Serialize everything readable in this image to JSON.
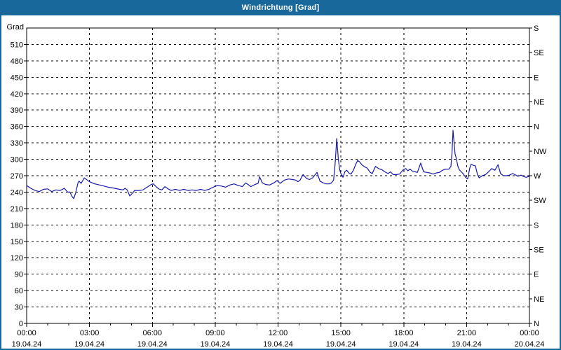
{
  "window": {
    "title": "Windrichtung [Grad]"
  },
  "colors": {
    "titlebar_bg": "#19689C",
    "frame_border": "#19689C",
    "plot_border": "#000000",
    "grid": "#000000",
    "line": "#1818A8",
    "background": "#FFFFFF",
    "title_text": "#FFFFFF",
    "label_text": "#000000"
  },
  "chart_data": {
    "type": "line",
    "title": "Windrichtung [Grad]",
    "ylabel_left": "Grad",
    "ylim": [
      0,
      540
    ],
    "y_left_tick_step": 30,
    "y_left_ticks": [
      0,
      30,
      60,
      90,
      120,
      150,
      180,
      210,
      240,
      270,
      300,
      330,
      360,
      390,
      420,
      450,
      480,
      510
    ],
    "y_right_labels": [
      {
        "deg": 0,
        "label": "N"
      },
      {
        "deg": 45,
        "label": "NE"
      },
      {
        "deg": 90,
        "label": "E"
      },
      {
        "deg": 135,
        "label": "SE"
      },
      {
        "deg": 180,
        "label": "S"
      },
      {
        "deg": 225,
        "label": "SW"
      },
      {
        "deg": 270,
        "label": "W"
      },
      {
        "deg": 315,
        "label": "NW"
      },
      {
        "deg": 360,
        "label": "N"
      },
      {
        "deg": 405,
        "label": "NE"
      },
      {
        "deg": 450,
        "label": "E"
      },
      {
        "deg": 495,
        "label": "SE"
      },
      {
        "deg": 540,
        "label": "S"
      }
    ],
    "xlim_hours": [
      0,
      24
    ],
    "x_major_ticks": [
      {
        "hours": 0,
        "time": "00:00",
        "date": "19.04.24"
      },
      {
        "hours": 3,
        "time": "03:00",
        "date": "19.04.24"
      },
      {
        "hours": 6,
        "time": "06:00",
        "date": "19.04.24"
      },
      {
        "hours": 9,
        "time": "09:00",
        "date": "19.04.24"
      },
      {
        "hours": 12,
        "time": "12:00",
        "date": "19.04.24"
      },
      {
        "hours": 15,
        "time": "15:00",
        "date": "19.04.24"
      },
      {
        "hours": 18,
        "time": "18:00",
        "date": "19.04.24"
      },
      {
        "hours": 21,
        "time": "21:00",
        "date": "19.04.24"
      },
      {
        "hours": 24,
        "time": "00:00",
        "date": "20.04.24"
      }
    ],
    "x_minor_tick_hours": 1,
    "grid": "dashed",
    "series": [
      {
        "color": "#1818A8",
        "points": [
          [
            0,
            252
          ],
          [
            0.2,
            247
          ],
          [
            0.4,
            243
          ],
          [
            0.6,
            241
          ],
          [
            0.8,
            245
          ],
          [
            1.0,
            246
          ],
          [
            1.2,
            241
          ],
          [
            1.4,
            244
          ],
          [
            1.6,
            243
          ],
          [
            1.8,
            247
          ],
          [
            1.95,
            240
          ],
          [
            2.07,
            240
          ],
          [
            2.15,
            233
          ],
          [
            2.25,
            228
          ],
          [
            2.35,
            240
          ],
          [
            2.45,
            257
          ],
          [
            2.5,
            260
          ],
          [
            2.6,
            256
          ],
          [
            2.75,
            266
          ],
          [
            2.9,
            262
          ],
          [
            3.0,
            259
          ],
          [
            3.25,
            255
          ],
          [
            3.6,
            252
          ],
          [
            3.9,
            249
          ],
          [
            4.2,
            247
          ],
          [
            4.45,
            245
          ],
          [
            4.6,
            244
          ],
          [
            4.7,
            247
          ],
          [
            4.8,
            244
          ],
          [
            4.92,
            233
          ],
          [
            5.05,
            238
          ],
          [
            5.15,
            243
          ],
          [
            5.35,
            243
          ],
          [
            5.55,
            244
          ],
          [
            5.75,
            249
          ],
          [
            5.95,
            254
          ],
          [
            6.05,
            255
          ],
          [
            6.15,
            251
          ],
          [
            6.3,
            246
          ],
          [
            6.45,
            244
          ],
          [
            6.6,
            250
          ],
          [
            6.75,
            246
          ],
          [
            6.9,
            243
          ],
          [
            7.1,
            245
          ],
          [
            7.3,
            243
          ],
          [
            7.5,
            245
          ],
          [
            7.7,
            243
          ],
          [
            7.9,
            244
          ],
          [
            8.1,
            243
          ],
          [
            8.3,
            245
          ],
          [
            8.5,
            243
          ],
          [
            8.7,
            245
          ],
          [
            8.9,
            249
          ],
          [
            9.1,
            252
          ],
          [
            9.3,
            251
          ],
          [
            9.5,
            249
          ],
          [
            9.7,
            253
          ],
          [
            9.9,
            255
          ],
          [
            10.1,
            252
          ],
          [
            10.3,
            250
          ],
          [
            10.45,
            257
          ],
          [
            10.6,
            253
          ],
          [
            10.7,
            250
          ],
          [
            10.9,
            254
          ],
          [
            11.05,
            256
          ],
          [
            11.12,
            268
          ],
          [
            11.25,
            257
          ],
          [
            11.4,
            254
          ],
          [
            11.6,
            253
          ],
          [
            11.8,
            257
          ],
          [
            11.95,
            261
          ],
          [
            12.1,
            256
          ],
          [
            12.3,
            262
          ],
          [
            12.5,
            264
          ],
          [
            12.7,
            263
          ],
          [
            12.85,
            262
          ],
          [
            12.95,
            259
          ],
          [
            13.05,
            262
          ],
          [
            13.19,
            272
          ],
          [
            13.36,
            265
          ],
          [
            13.5,
            263
          ],
          [
            13.65,
            266
          ],
          [
            13.86,
            276
          ],
          [
            14.0,
            260
          ],
          [
            14.15,
            257
          ],
          [
            14.3,
            255
          ],
          [
            14.45,
            255
          ],
          [
            14.55,
            257
          ],
          [
            14.65,
            262
          ],
          [
            14.72,
            290
          ],
          [
            14.8,
            338
          ],
          [
            14.88,
            300
          ],
          [
            14.95,
            280
          ],
          [
            15.0,
            274
          ],
          [
            15.1,
            267
          ],
          [
            15.2,
            278
          ],
          [
            15.28,
            280
          ],
          [
            15.38,
            275
          ],
          [
            15.48,
            273
          ],
          [
            15.6,
            280
          ],
          [
            15.7,
            290
          ],
          [
            15.8,
            298
          ],
          [
            15.9,
            295
          ],
          [
            16.0,
            290
          ],
          [
            16.1,
            287
          ],
          [
            16.25,
            284
          ],
          [
            16.4,
            276
          ],
          [
            16.5,
            274
          ],
          [
            16.65,
            287
          ],
          [
            16.8,
            283
          ],
          [
            16.95,
            281
          ],
          [
            17.1,
            277
          ],
          [
            17.25,
            274
          ],
          [
            17.37,
            277
          ],
          [
            17.5,
            272
          ],
          [
            17.65,
            272
          ],
          [
            17.8,
            273
          ],
          [
            17.95,
            280
          ],
          [
            18.1,
            283
          ],
          [
            18.2,
            279
          ],
          [
            18.3,
            282
          ],
          [
            18.42,
            278
          ],
          [
            18.55,
            277
          ],
          [
            18.65,
            276
          ],
          [
            18.81,
            293
          ],
          [
            18.95,
            277
          ],
          [
            19.1,
            276
          ],
          [
            19.25,
            275
          ],
          [
            19.4,
            273
          ],
          [
            19.55,
            275
          ],
          [
            19.7,
            276
          ],
          [
            19.85,
            280
          ],
          [
            20.0,
            282
          ],
          [
            20.15,
            282
          ],
          [
            20.25,
            287
          ],
          [
            20.3,
            310
          ],
          [
            20.35,
            353
          ],
          [
            20.45,
            310
          ],
          [
            20.52,
            300
          ],
          [
            20.58,
            288
          ],
          [
            20.65,
            281
          ],
          [
            20.75,
            277
          ],
          [
            20.85,
            273
          ],
          [
            20.95,
            267
          ],
          [
            21.05,
            264
          ],
          [
            21.15,
            284
          ],
          [
            21.22,
            291
          ],
          [
            21.32,
            289
          ],
          [
            21.42,
            288
          ],
          [
            21.52,
            272
          ],
          [
            21.6,
            266
          ],
          [
            21.75,
            270
          ],
          [
            21.9,
            272
          ],
          [
            22.05,
            277
          ],
          [
            22.2,
            283
          ],
          [
            22.35,
            280
          ],
          [
            22.5,
            290
          ],
          [
            22.62,
            274
          ],
          [
            22.75,
            270
          ],
          [
            22.9,
            270
          ],
          [
            23.05,
            271
          ],
          [
            23.2,
            274
          ],
          [
            23.3,
            272
          ],
          [
            23.45,
            269
          ],
          [
            23.6,
            271
          ],
          [
            23.75,
            268
          ],
          [
            23.85,
            267
          ],
          [
            24.0,
            269
          ]
        ]
      }
    ]
  }
}
